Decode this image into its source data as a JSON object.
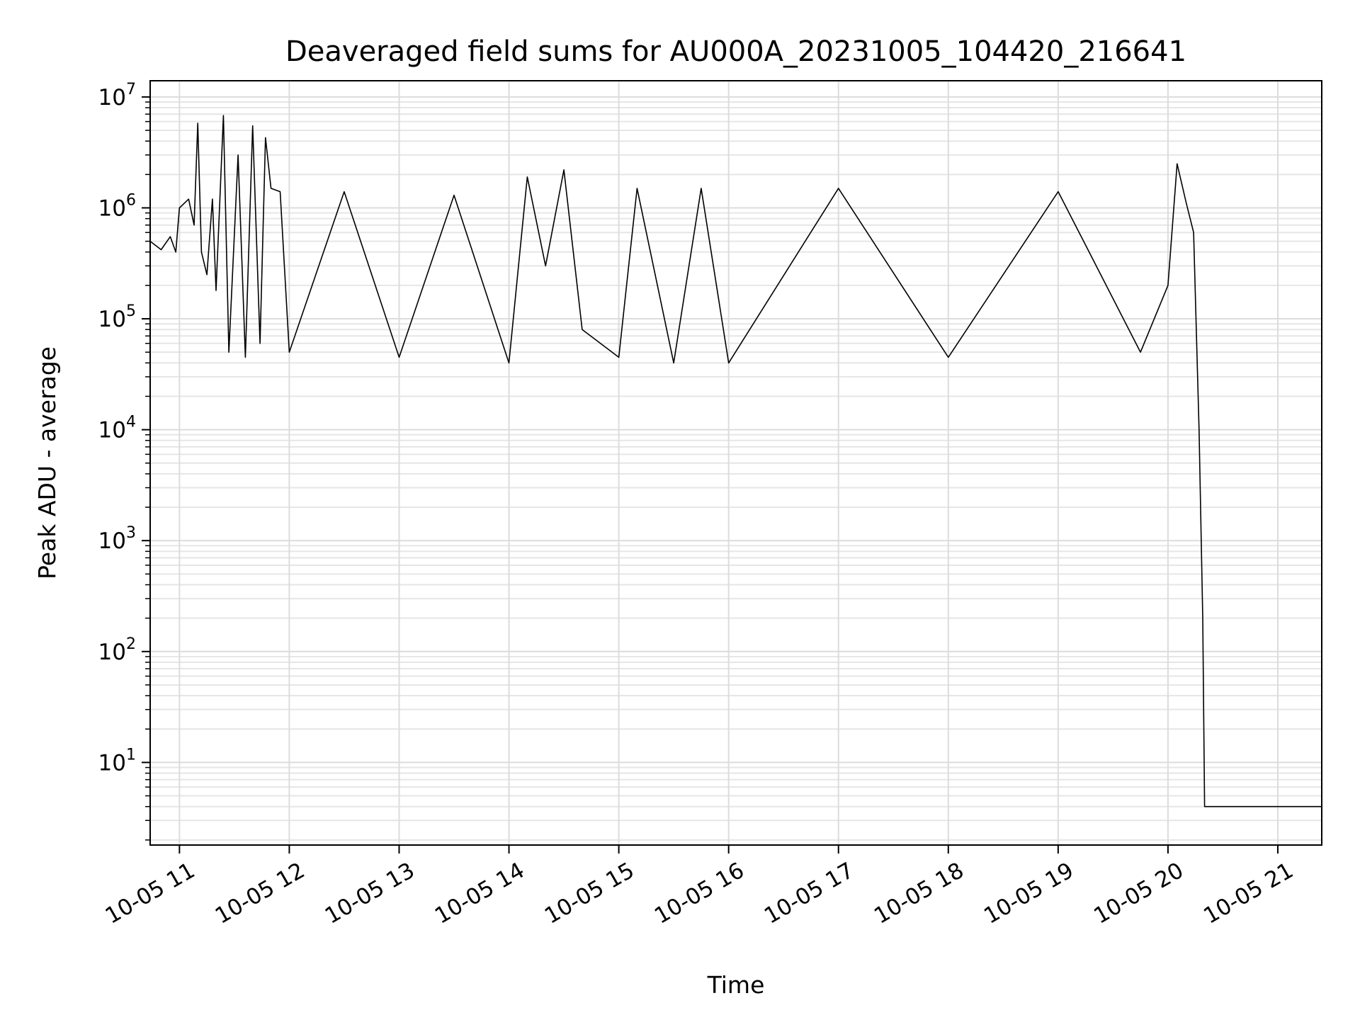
{
  "chart_data": {
    "type": "line",
    "title": "Deaveraged field sums for AU000A_20231005_104420_216641",
    "xlabel": "Time",
    "ylabel": "Peak ADU - average",
    "yscale": "log",
    "ylim": [
      1.8,
      14000000
    ],
    "xlim": [
      "2023-10-05 10:44",
      "2023-10-05 21:24"
    ],
    "grid": true,
    "line_color": "#000000",
    "x_ticks": [
      "10-05 11",
      "10-05 12",
      "10-05 13",
      "10-05 14",
      "10-05 15",
      "10-05 16",
      "10-05 17",
      "10-05 18",
      "10-05 19",
      "10-05 20",
      "10-05 21"
    ],
    "y_ticks": [
      {
        "base": "10",
        "exp": "1"
      },
      {
        "base": "10",
        "exp": "2"
      },
      {
        "base": "10",
        "exp": "3"
      },
      {
        "base": "10",
        "exp": "4"
      },
      {
        "base": "10",
        "exp": "5"
      },
      {
        "base": "10",
        "exp": "6"
      },
      {
        "base": "10",
        "exp": "7"
      }
    ],
    "series": [
      {
        "points": [
          [
            "2023-10-05 10:44",
            500000
          ],
          [
            "2023-10-05 10:50",
            420000
          ],
          [
            "2023-10-05 10:55",
            550000
          ],
          [
            "2023-10-05 10:58",
            400000
          ],
          [
            "2023-10-05 11:00",
            1000000
          ],
          [
            "2023-10-05 11:05",
            1200000
          ],
          [
            "2023-10-05 11:08",
            700000
          ],
          [
            "2023-10-05 11:10",
            5800000
          ],
          [
            "2023-10-05 11:12",
            400000
          ],
          [
            "2023-10-05 11:15",
            250000
          ],
          [
            "2023-10-05 11:18",
            1200000
          ],
          [
            "2023-10-05 11:20",
            180000
          ],
          [
            "2023-10-05 11:24",
            6800000
          ],
          [
            "2023-10-05 11:27",
            50000
          ],
          [
            "2023-10-05 11:32",
            3000000
          ],
          [
            "2023-10-05 11:36",
            45000
          ],
          [
            "2023-10-05 11:40",
            5500000
          ],
          [
            "2023-10-05 11:44",
            60000
          ],
          [
            "2023-10-05 11:47",
            4300000
          ],
          [
            "2023-10-05 11:50",
            1500000
          ],
          [
            "2023-10-05 11:55",
            1400000
          ],
          [
            "2023-10-05 12:00",
            50000
          ],
          [
            "2023-10-05 12:30",
            1400000
          ],
          [
            "2023-10-05 13:00",
            45000
          ],
          [
            "2023-10-05 13:30",
            1300000
          ],
          [
            "2023-10-05 14:00",
            40000
          ],
          [
            "2023-10-05 14:10",
            1900000
          ],
          [
            "2023-10-05 14:20",
            300000
          ],
          [
            "2023-10-05 14:30",
            2200000
          ],
          [
            "2023-10-05 14:40",
            80000
          ],
          [
            "2023-10-05 15:00",
            45000
          ],
          [
            "2023-10-05 15:10",
            1500000
          ],
          [
            "2023-10-05 15:30",
            40000
          ],
          [
            "2023-10-05 15:45",
            1500000
          ],
          [
            "2023-10-05 16:00",
            40000
          ],
          [
            "2023-10-05 17:00",
            1500000
          ],
          [
            "2023-10-05 18:00",
            45000
          ],
          [
            "2023-10-05 19:00",
            1400000
          ],
          [
            "2023-10-05 19:45",
            50000
          ],
          [
            "2023-10-05 20:00",
            200000
          ],
          [
            "2023-10-05 20:05",
            2500000
          ],
          [
            "2023-10-05 20:10",
            1100000
          ],
          [
            "2023-10-05 20:14",
            600000
          ],
          [
            "2023-10-05 20:17",
            10000
          ],
          [
            "2023-10-05 20:19",
            200
          ],
          [
            "2023-10-05 20:20",
            4
          ],
          [
            "2023-10-05 21:24",
            4
          ]
        ]
      }
    ]
  }
}
